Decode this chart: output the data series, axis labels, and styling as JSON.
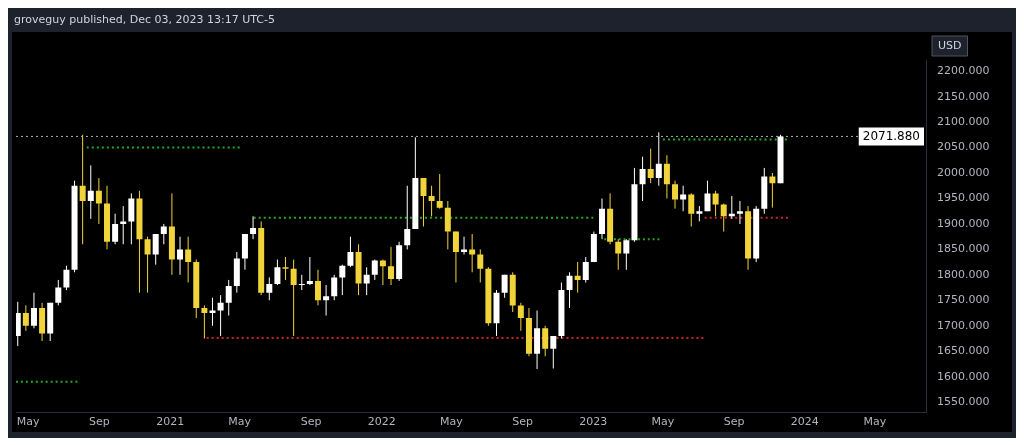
{
  "chart_data": {
    "type": "candlestick",
    "title": "groveguy published, Dec 03, 2023 13:17 UTC-5",
    "ylabel": "USD",
    "xlim": [
      "2020-04-10",
      "2024-07-28"
    ],
    "xticks": [
      {
        "value": "2020-05-01",
        "label": "May"
      },
      {
        "value": "2020-09-01",
        "label": "Sep"
      },
      {
        "value": "2021-01-01",
        "label": "2021"
      },
      {
        "value": "2021-05-01",
        "label": "May"
      },
      {
        "value": "2021-09-01",
        "label": "Sep"
      },
      {
        "value": "2022-01-01",
        "label": "2022"
      },
      {
        "value": "2022-05-01",
        "label": "May"
      },
      {
        "value": "2022-09-01",
        "label": "Sep"
      },
      {
        "value": "2023-01-01",
        "label": "2023"
      },
      {
        "value": "2023-05-01",
        "label": "May"
      },
      {
        "value": "2023-09-01",
        "label": "Sep"
      },
      {
        "value": "2024-01-01",
        "label": "2024"
      },
      {
        "value": "2024-05-01",
        "label": "May"
      }
    ],
    "ylim": [
      1529,
      2222
    ],
    "yticks": [
      {
        "value": 1550,
        "label": "1550.000"
      },
      {
        "value": 1600,
        "label": "1600.000"
      },
      {
        "value": 1650,
        "label": "1650.000"
      },
      {
        "value": 1700,
        "label": "1700.000"
      },
      {
        "value": 1750,
        "label": "1750.000"
      },
      {
        "value": 1800,
        "label": "1800.000"
      },
      {
        "value": 1850,
        "label": "1850.000"
      },
      {
        "value": 1900,
        "label": "1900.000"
      },
      {
        "value": 1950,
        "label": "1950.000"
      },
      {
        "value": 2000,
        "label": "2000.000"
      },
      {
        "value": 2050,
        "label": "2050.000"
      },
      {
        "value": 2100,
        "label": "2100.000"
      },
      {
        "value": 2150,
        "label": "2150.000"
      },
      {
        "value": 2200,
        "label": "2200.000"
      }
    ],
    "ref_lines": [
      {
        "axis": "y",
        "value": 2071.88,
        "label": "2071.880",
        "color": "#b0b0b0",
        "line_style": "dotted"
      }
    ],
    "grid": false,
    "legend": false,
    "series": [
      {
        "type": "candlestick",
        "x": [
          "2020-04-13",
          "2020-04-27",
          "2020-05-11",
          "2020-05-25",
          "2020-06-08",
          "2020-06-22",
          "2020-07-06",
          "2020-07-20",
          "2020-08-03",
          "2020-08-17",
          "2020-08-31",
          "2020-09-14",
          "2020-09-28",
          "2020-10-12",
          "2020-10-26",
          "2020-11-09",
          "2020-11-23",
          "2020-12-07",
          "2020-12-21",
          "2021-01-04",
          "2021-01-18",
          "2021-02-01",
          "2021-02-15",
          "2021-03-01",
          "2021-03-15",
          "2021-03-29",
          "2021-04-12",
          "2021-04-26",
          "2021-05-10",
          "2021-05-24",
          "2021-06-07",
          "2021-06-21",
          "2021-07-05",
          "2021-07-19",
          "2021-08-02",
          "2021-08-16",
          "2021-08-30",
          "2021-09-13",
          "2021-09-27",
          "2021-10-11",
          "2021-10-25",
          "2021-11-08",
          "2021-11-22",
          "2021-12-06",
          "2021-12-20",
          "2022-01-03",
          "2022-01-17",
          "2022-01-31",
          "2022-02-14",
          "2022-02-28",
          "2022-03-14",
          "2022-03-28",
          "2022-04-11",
          "2022-04-25",
          "2022-05-09",
          "2022-05-23",
          "2022-06-06",
          "2022-06-20",
          "2022-07-04",
          "2022-07-18",
          "2022-08-01",
          "2022-08-15",
          "2022-08-29",
          "2022-09-12",
          "2022-09-26",
          "2022-10-10",
          "2022-10-24",
          "2022-11-07",
          "2022-11-21",
          "2022-12-05",
          "2022-12-19",
          "2023-01-02",
          "2023-01-16",
          "2023-01-30",
          "2023-02-13",
          "2023-02-27",
          "2023-03-13",
          "2023-03-27",
          "2023-04-10",
          "2023-04-24",
          "2023-05-08",
          "2023-05-22",
          "2023-06-05",
          "2023-06-19",
          "2023-07-03",
          "2023-07-17",
          "2023-07-31",
          "2023-08-14",
          "2023-08-28",
          "2023-09-11",
          "2023-09-25",
          "2023-10-09",
          "2023-10-23",
          "2023-11-06",
          "2023-11-20"
        ],
        "ohlc": [
          [
            1680,
            1747,
            1660,
            1725
          ],
          [
            1725,
            1740,
            1690,
            1700
          ],
          [
            1700,
            1765,
            1695,
            1735
          ],
          [
            1735,
            1745,
            1670,
            1685
          ],
          [
            1685,
            1745,
            1670,
            1745
          ],
          [
            1745,
            1790,
            1740,
            1775
          ],
          [
            1775,
            1818,
            1770,
            1810
          ],
          [
            1810,
            1985,
            1805,
            1975
          ],
          [
            1975,
            2075,
            1860,
            1945
          ],
          [
            1945,
            2015,
            1910,
            1965
          ],
          [
            1965,
            1990,
            1900,
            1940
          ],
          [
            1940,
            1975,
            1850,
            1865
          ],
          [
            1865,
            1920,
            1860,
            1900
          ],
          [
            1900,
            1935,
            1860,
            1905
          ],
          [
            1905,
            1960,
            1860,
            1950
          ],
          [
            1950,
            1965,
            1765,
            1870
          ],
          [
            1870,
            1875,
            1765,
            1840
          ],
          [
            1840,
            1880,
            1820,
            1880
          ],
          [
            1880,
            1900,
            1860,
            1895
          ],
          [
            1895,
            1960,
            1800,
            1830
          ],
          [
            1830,
            1875,
            1800,
            1850
          ],
          [
            1850,
            1875,
            1785,
            1825
          ],
          [
            1825,
            1830,
            1715,
            1735
          ],
          [
            1735,
            1740,
            1675,
            1725
          ],
          [
            1725,
            1755,
            1700,
            1730
          ],
          [
            1730,
            1760,
            1680,
            1745
          ],
          [
            1745,
            1790,
            1720,
            1778
          ],
          [
            1778,
            1845,
            1765,
            1832
          ],
          [
            1832,
            1880,
            1810,
            1880
          ],
          [
            1880,
            1915,
            1870,
            1892
          ],
          [
            1892,
            1905,
            1760,
            1765
          ],
          [
            1765,
            1795,
            1750,
            1782
          ],
          [
            1782,
            1830,
            1780,
            1815
          ],
          [
            1815,
            1835,
            1790,
            1812
          ],
          [
            1812,
            1830,
            1680,
            1780
          ],
          [
            1780,
            1800,
            1770,
            1782
          ],
          [
            1782,
            1835,
            1780,
            1788
          ],
          [
            1788,
            1810,
            1740,
            1750
          ],
          [
            1750,
            1780,
            1720,
            1758
          ],
          [
            1758,
            1800,
            1750,
            1795
          ],
          [
            1795,
            1820,
            1760,
            1818
          ],
          [
            1818,
            1875,
            1815,
            1845
          ],
          [
            1845,
            1860,
            1760,
            1783
          ],
          [
            1783,
            1815,
            1760,
            1800
          ],
          [
            1800,
            1830,
            1790,
            1828
          ],
          [
            1828,
            1830,
            1780,
            1817
          ],
          [
            1817,
            1855,
            1780,
            1792
          ],
          [
            1792,
            1865,
            1788,
            1858
          ],
          [
            1858,
            1975,
            1850,
            1890
          ],
          [
            1890,
            2070,
            1890,
            1990
          ],
          [
            1990,
            1990,
            1895,
            1955
          ],
          [
            1955,
            1975,
            1915,
            1945
          ],
          [
            1945,
            1998,
            1930,
            1932
          ],
          [
            1932,
            1945,
            1850,
            1885
          ],
          [
            1885,
            1885,
            1785,
            1845
          ],
          [
            1845,
            1875,
            1840,
            1850
          ],
          [
            1850,
            1880,
            1805,
            1840
          ],
          [
            1840,
            1850,
            1785,
            1812
          ],
          [
            1812,
            1815,
            1700,
            1705
          ],
          [
            1705,
            1770,
            1680,
            1765
          ],
          [
            1765,
            1800,
            1755,
            1800
          ],
          [
            1800,
            1805,
            1727,
            1740
          ],
          [
            1740,
            1745,
            1690,
            1715
          ],
          [
            1715,
            1735,
            1640,
            1645
          ],
          [
            1645,
            1730,
            1615,
            1695
          ],
          [
            1695,
            1700,
            1640,
            1655
          ],
          [
            1655,
            1680,
            1616,
            1680
          ],
          [
            1680,
            1785,
            1675,
            1770
          ],
          [
            1770,
            1805,
            1735,
            1798
          ],
          [
            1798,
            1825,
            1765,
            1790
          ],
          [
            1790,
            1835,
            1785,
            1825
          ],
          [
            1825,
            1885,
            1825,
            1880
          ],
          [
            1880,
            1950,
            1870,
            1930
          ],
          [
            1930,
            1960,
            1860,
            1865
          ],
          [
            1865,
            1870,
            1810,
            1842
          ],
          [
            1842,
            1870,
            1810,
            1868
          ],
          [
            1868,
            2010,
            1865,
            1978
          ],
          [
            1978,
            2032,
            1945,
            2008
          ],
          [
            2008,
            2048,
            1980,
            1990
          ],
          [
            1990,
            2080,
            1975,
            2018
          ],
          [
            2018,
            2035,
            1950,
            1978
          ],
          [
            1978,
            1985,
            1930,
            1948
          ],
          [
            1948,
            1975,
            1925,
            1958
          ],
          [
            1958,
            1960,
            1895,
            1920
          ],
          [
            1920,
            1935,
            1905,
            1925
          ],
          [
            1925,
            1985,
            1925,
            1960
          ],
          [
            1960,
            1965,
            1915,
            1938
          ],
          [
            1938,
            1940,
            1885,
            1915
          ],
          [
            1915,
            1955,
            1910,
            1920
          ],
          [
            1920,
            1945,
            1900,
            1925
          ],
          [
            1925,
            1935,
            1810,
            1832
          ],
          [
            1832,
            1935,
            1825,
            1930
          ],
          [
            1930,
            2010,
            1920,
            1993
          ],
          [
            1993,
            2000,
            1932,
            1980
          ],
          [
            1980,
            2075,
            1980,
            2071.88
          ]
        ],
        "colors": [
          "#ffffff",
          "#f0d43a",
          "#ffffff",
          "#f0d43a",
          "#ffffff",
          "#ffffff",
          "#ffffff",
          "#ffffff",
          "#f0d43a",
          "#ffffff",
          "#f0d43a",
          "#f0d43a",
          "#ffffff",
          "#ffffff",
          "#ffffff",
          "#f0d43a",
          "#f0d43a",
          "#ffffff",
          "#ffffff",
          "#f0d43a",
          "#ffffff",
          "#f0d43a",
          "#f0d43a",
          "#f0d43a",
          "#ffffff",
          "#ffffff",
          "#ffffff",
          "#ffffff",
          "#ffffff",
          "#ffffff",
          "#f0d43a",
          "#ffffff",
          "#ffffff",
          "#f0d43a",
          "#f0d43a",
          "#ffffff",
          "#ffffff",
          "#f0d43a",
          "#ffffff",
          "#ffffff",
          "#ffffff",
          "#ffffff",
          "#f0d43a",
          "#ffffff",
          "#ffffff",
          "#f0d43a",
          "#f0d43a",
          "#ffffff",
          "#ffffff",
          "#ffffff",
          "#f0d43a",
          "#f0d43a",
          "#f0d43a",
          "#f0d43a",
          "#f0d43a",
          "#ffffff",
          "#f0d43a",
          "#f0d43a",
          "#f0d43a",
          "#ffffff",
          "#ffffff",
          "#f0d43a",
          "#f0d43a",
          "#f0d43a",
          "#ffffff",
          "#f0d43a",
          "#ffffff",
          "#ffffff",
          "#ffffff",
          "#f0d43a",
          "#ffffff",
          "#ffffff",
          "#ffffff",
          "#f0d43a",
          "#f0d43a",
          "#ffffff",
          "#ffffff",
          "#ffffff",
          "#f0d43a",
          "#ffffff",
          "#f0d43a",
          "#f0d43a",
          "#ffffff",
          "#f0d43a",
          "#ffffff",
          "#ffffff",
          "#f0d43a",
          "#f0d43a",
          "#ffffff",
          "#ffffff",
          "#f0d43a",
          "#ffffff",
          "#ffffff",
          "#f0d43a",
          "#ffffff"
        ]
      },
      {
        "type": "line",
        "color": "#22aa22",
        "line_style": "dotted",
        "x": [
          "2020-04-10",
          "2020-07-25"
        ],
        "values": [
          1590,
          1590
        ]
      },
      {
        "type": "line",
        "color": "#22aa22",
        "line_style": "dotted",
        "x": [
          "2020-08-10",
          "2021-05-01"
        ],
        "values": [
          2050,
          2050
        ]
      },
      {
        "type": "line",
        "color": "#22aa22",
        "line_style": "dotted",
        "x": [
          "2021-05-25",
          "2023-01-01"
        ],
        "values": [
          1912,
          1912
        ]
      },
      {
        "type": "line",
        "color": "#22aa22",
        "line_style": "dotted",
        "x": [
          "2023-01-20",
          "2023-04-25"
        ],
        "values": [
          1870,
          1870
        ]
      },
      {
        "type": "line",
        "color": "#22aa22",
        "line_style": "dotted",
        "x": [
          "2023-05-01",
          "2023-12-01"
        ],
        "values": [
          2066,
          2066
        ]
      },
      {
        "type": "line",
        "color": "#cc2222",
        "line_style": "dotted",
        "x": [
          "2021-03-05",
          "2023-07-10"
        ],
        "values": [
          1676,
          1676
        ]
      },
      {
        "type": "line",
        "color": "#cc2222",
        "line_style": "dotted",
        "x": [
          "2023-07-12",
          "2023-12-03"
        ],
        "values": [
          1912,
          1912
        ]
      }
    ]
  }
}
